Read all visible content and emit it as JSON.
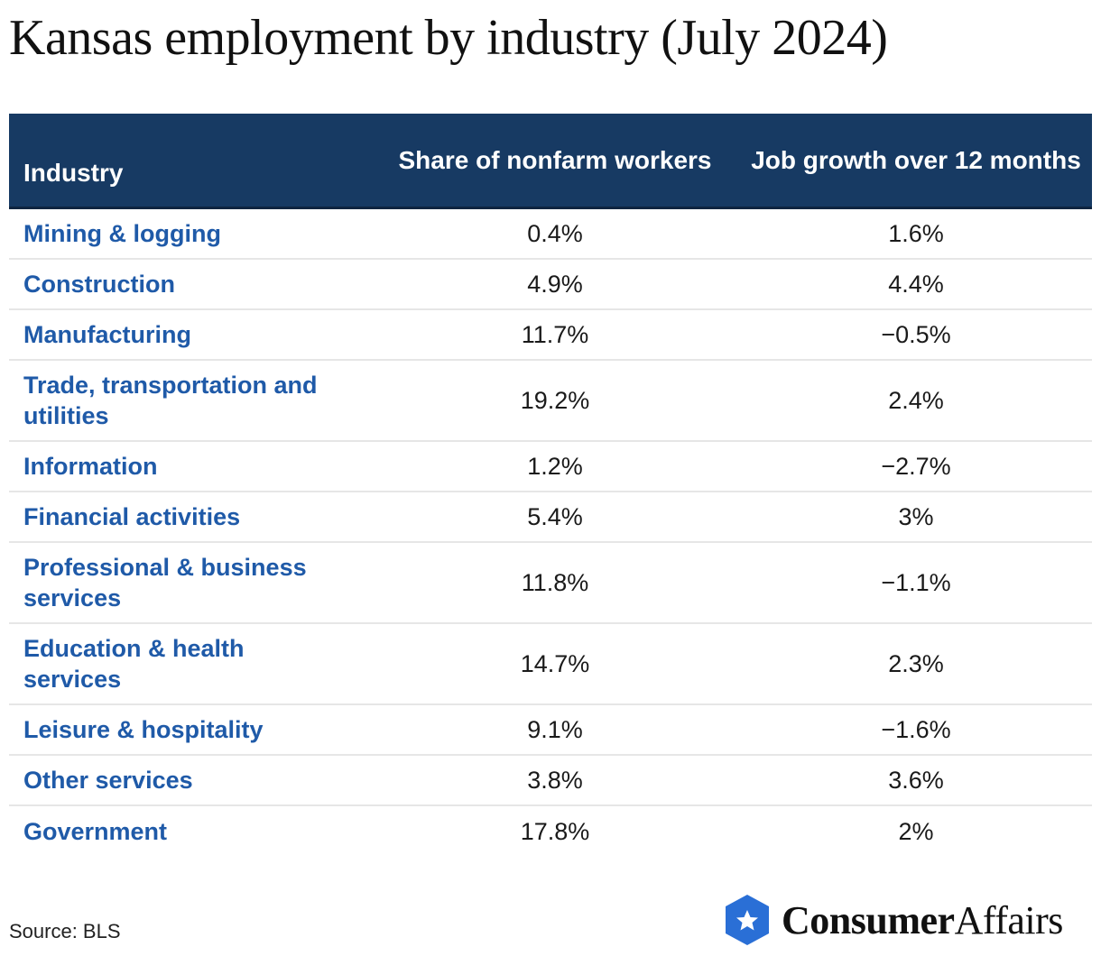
{
  "title": "Kansas employment by industry (July 2024)",
  "header": {
    "industry": "Industry",
    "share": "Share of nonfarm workers",
    "growth": "Job growth over 12 months"
  },
  "chart_data": {
    "type": "table",
    "title": "Kansas employment by industry (July 2024)",
    "columns": [
      "Industry",
      "Share of nonfarm workers",
      "Job growth over 12 months"
    ],
    "rows": [
      {
        "industry": "Mining & logging",
        "share": "0.4%",
        "growth": "1.6%"
      },
      {
        "industry": "Construction",
        "share": "4.9%",
        "growth": "4.4%"
      },
      {
        "industry": "Manufacturing",
        "share": "11.7%",
        "growth": "−0.5%"
      },
      {
        "industry": "Trade, transportation and utilities",
        "share": "19.2%",
        "growth": "2.4%"
      },
      {
        "industry": "Information",
        "share": "1.2%",
        "growth": "−2.7%"
      },
      {
        "industry": "Financial activities",
        "share": "5.4%",
        "growth": "3%"
      },
      {
        "industry": "Professional & business services",
        "share": "11.8%",
        "growth": "−1.1%"
      },
      {
        "industry": "Education & health services",
        "share": "14.7%",
        "growth": "2.3%"
      },
      {
        "industry": "Leisure & hospitality",
        "share": "9.1%",
        "growth": "−1.6%"
      },
      {
        "industry": "Other services",
        "share": "3.8%",
        "growth": "3.6%"
      },
      {
        "industry": "Government",
        "share": "17.8%",
        "growth": "2%"
      }
    ]
  },
  "source": "Source: BLS",
  "logo": {
    "name_bold": "Consumer",
    "name_regular": "Affairs",
    "icon": "star-hexagon-icon",
    "color": "#2a6fd6"
  },
  "colors": {
    "header_bg": "#173a63",
    "industry_text": "#1f5aa8"
  }
}
